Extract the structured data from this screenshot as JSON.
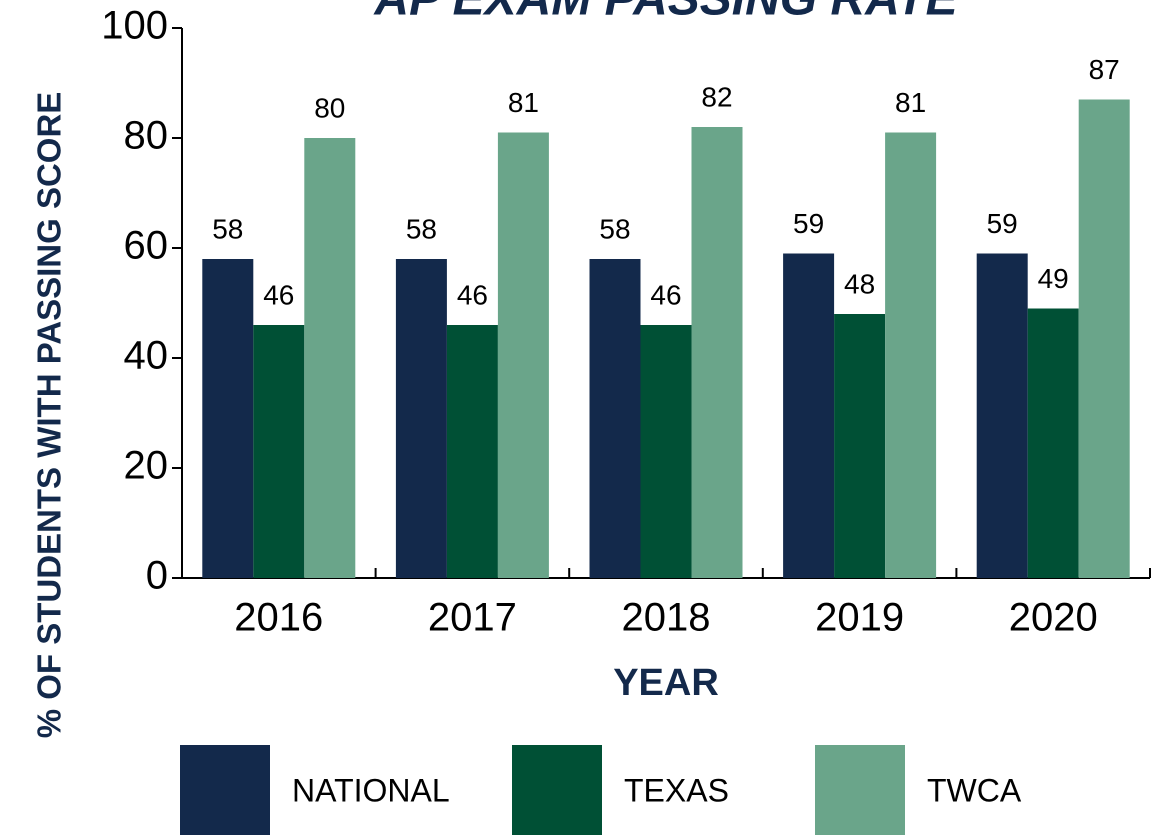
{
  "chart_data": {
    "type": "bar",
    "title": "AP EXAM PASSING RATE",
    "xlabel": "YEAR",
    "ylabel": "% OF STUDENTS WITH PASSING SCORE",
    "categories": [
      "2016",
      "2017",
      "2018",
      "2019",
      "2020"
    ],
    "series": [
      {
        "name": "NATIONAL",
        "color": "#13294b",
        "values": [
          58,
          58,
          58,
          59,
          59
        ]
      },
      {
        "name": "TEXAS",
        "color": "#005035",
        "values": [
          46,
          46,
          46,
          48,
          49
        ]
      },
      {
        "name": "TWCA",
        "color": "#6aa58a",
        "values": [
          80,
          81,
          82,
          81,
          87
        ]
      }
    ],
    "ylim": [
      0,
      100
    ],
    "yticks": [
      0,
      20,
      40,
      60,
      80,
      100
    ],
    "grid": false,
    "legend": "bottom"
  }
}
